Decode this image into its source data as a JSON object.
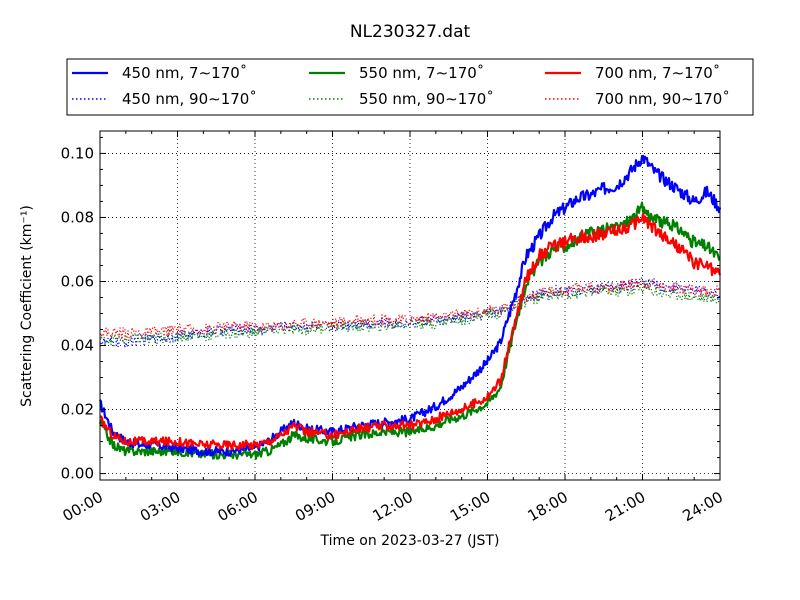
{
  "chart_data": {
    "type": "line",
    "title": "NL230327.dat",
    "xlabel": "Time on 2023-03-27 (JST)",
    "ylabel": "Scattering Coefficient (km⁻¹)",
    "xlim": [
      0,
      24
    ],
    "ylim": [
      -0.002,
      0.107
    ],
    "x_ticks": [
      0,
      3,
      6,
      9,
      12,
      15,
      18,
      21,
      24
    ],
    "x_tick_labels": [
      "00:00",
      "03:00",
      "06:00",
      "09:00",
      "12:00",
      "15:00",
      "18:00",
      "21:00",
      "24:00"
    ],
    "y_ticks": [
      0.0,
      0.02,
      0.04,
      0.06,
      0.08,
      0.1
    ],
    "y_tick_labels": [
      "0.00",
      "0.02",
      "0.04",
      "0.06",
      "0.08",
      "0.10"
    ],
    "grid": true,
    "legend_position": "top (above plot), 3 columns",
    "x_hours": [
      0,
      0.5,
      1,
      1.5,
      2,
      3,
      4,
      5,
      6,
      6.5,
      7,
      7.5,
      8,
      9,
      10,
      11,
      12,
      13,
      13.5,
      14,
      14.5,
      15,
      15.5,
      16,
      16.5,
      17,
      17.5,
      18,
      18.5,
      19,
      19.5,
      20,
      20.5,
      21,
      21.5,
      22,
      22.5,
      23,
      23.5,
      24
    ],
    "series": [
      {
        "name": "450 nm, 7∼170˚",
        "color": "#0000ff",
        "style": "solid",
        "values": [
          0.022,
          0.013,
          0.01,
          0.009,
          0.009,
          0.008,
          0.007,
          0.007,
          0.008,
          0.01,
          0.013,
          0.016,
          0.014,
          0.013,
          0.015,
          0.016,
          0.017,
          0.021,
          0.024,
          0.027,
          0.031,
          0.035,
          0.041,
          0.054,
          0.068,
          0.074,
          0.08,
          0.083,
          0.086,
          0.087,
          0.089,
          0.09,
          0.094,
          0.099,
          0.094,
          0.091,
          0.088,
          0.085,
          0.088,
          0.083
        ]
      },
      {
        "name": "450 nm, 90∼170˚",
        "color": "#0000ff",
        "style": "dotted",
        "values": [
          0.041,
          0.041,
          0.041,
          0.042,
          0.042,
          0.043,
          0.044,
          0.045,
          0.045,
          0.045,
          0.046,
          0.046,
          0.046,
          0.046,
          0.047,
          0.047,
          0.047,
          0.048,
          0.048,
          0.049,
          0.049,
          0.05,
          0.051,
          0.053,
          0.055,
          0.056,
          0.057,
          0.057,
          0.057,
          0.058,
          0.058,
          0.058,
          0.059,
          0.06,
          0.059,
          0.058,
          0.058,
          0.057,
          0.057,
          0.056
        ]
      },
      {
        "name": "550 nm, 7∼170˚",
        "color": "#008000",
        "style": "solid",
        "values": [
          0.016,
          0.009,
          0.007,
          0.007,
          0.007,
          0.007,
          0.006,
          0.006,
          0.006,
          0.007,
          0.009,
          0.012,
          0.011,
          0.01,
          0.012,
          0.013,
          0.013,
          0.015,
          0.017,
          0.018,
          0.02,
          0.022,
          0.027,
          0.044,
          0.06,
          0.066,
          0.07,
          0.071,
          0.073,
          0.075,
          0.076,
          0.077,
          0.079,
          0.083,
          0.079,
          0.078,
          0.076,
          0.072,
          0.071,
          0.067
        ]
      },
      {
        "name": "550 nm, 90∼170˚",
        "color": "#008000",
        "style": "dotted",
        "values": [
          0.042,
          0.042,
          0.042,
          0.042,
          0.042,
          0.043,
          0.043,
          0.044,
          0.044,
          0.045,
          0.045,
          0.045,
          0.045,
          0.046,
          0.046,
          0.046,
          0.047,
          0.047,
          0.048,
          0.048,
          0.049,
          0.05,
          0.05,
          0.052,
          0.054,
          0.055,
          0.056,
          0.056,
          0.056,
          0.057,
          0.057,
          0.057,
          0.057,
          0.058,
          0.057,
          0.056,
          0.056,
          0.055,
          0.055,
          0.054
        ]
      },
      {
        "name": "700 nm, 7∼170˚",
        "color": "#ff0000",
        "style": "solid",
        "values": [
          0.017,
          0.012,
          0.01,
          0.01,
          0.01,
          0.01,
          0.009,
          0.009,
          0.009,
          0.01,
          0.012,
          0.015,
          0.013,
          0.012,
          0.014,
          0.015,
          0.015,
          0.017,
          0.019,
          0.02,
          0.022,
          0.024,
          0.029,
          0.045,
          0.061,
          0.068,
          0.071,
          0.072,
          0.074,
          0.074,
          0.075,
          0.076,
          0.077,
          0.08,
          0.076,
          0.073,
          0.07,
          0.066,
          0.065,
          0.062
        ]
      },
      {
        "name": "700 nm, 90∼170˚",
        "color": "#ff0000",
        "style": "dotted",
        "values": [
          0.044,
          0.044,
          0.044,
          0.044,
          0.044,
          0.045,
          0.045,
          0.046,
          0.046,
          0.046,
          0.046,
          0.047,
          0.047,
          0.047,
          0.048,
          0.048,
          0.048,
          0.049,
          0.049,
          0.05,
          0.05,
          0.051,
          0.051,
          0.053,
          0.055,
          0.056,
          0.057,
          0.057,
          0.058,
          0.058,
          0.058,
          0.058,
          0.059,
          0.06,
          0.059,
          0.058,
          0.058,
          0.057,
          0.057,
          0.057
        ]
      }
    ]
  }
}
